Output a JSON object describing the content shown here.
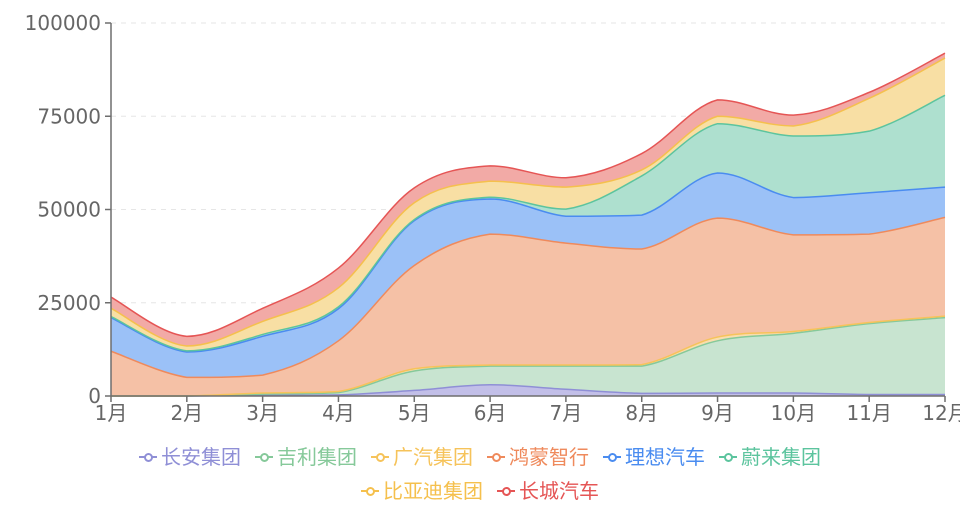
{
  "chart_data": {
    "type": "area",
    "stacked": true,
    "smooth": true,
    "title": "",
    "xlabel": "",
    "ylabel": "",
    "ylim": [
      0,
      100000
    ],
    "yticks": [
      0,
      25000,
      50000,
      75000,
      100000
    ],
    "grid": "horizontal dashed",
    "legend_position": "bottom",
    "categories": [
      "1月",
      "2月",
      "3月",
      "4月",
      "5月",
      "6月",
      "7月",
      "8月",
      "9月",
      "10月",
      "11月",
      "12月"
    ],
    "series": [
      {
        "name": "长安集团",
        "color": "#8f8fd6",
        "fill": "#c2bfe8",
        "values": [
          0,
          0,
          200,
          300,
          1500,
          3000,
          1800,
          700,
          800,
          800,
          400,
          400
        ]
      },
      {
        "name": "吉利集团",
        "color": "#86c99a",
        "fill": "#c8e4d0",
        "values": [
          0,
          0,
          300,
          600,
          5200,
          5000,
          6200,
          7300,
          14000,
          16000,
          19000,
          20600
        ]
      },
      {
        "name": "广汽集团",
        "color": "#f6c35a",
        "fill": "#f9ddae",
        "values": [
          0,
          0,
          300,
          300,
          600,
          300,
          300,
          400,
          1000,
          500,
          300,
          400
        ]
      },
      {
        "name": "鸿蒙智行",
        "color": "#ef8a5c",
        "fill": "#f5c1a6",
        "values": [
          12000,
          5000,
          4800,
          13600,
          27700,
          35100,
          32700,
          31000,
          31900,
          25900,
          23700,
          26500
        ]
      },
      {
        "name": "理想汽车",
        "color": "#4a8cf0",
        "fill": "#9bc1f7",
        "values": [
          9000,
          6800,
          10400,
          8600,
          12000,
          9400,
          7200,
          9100,
          12100,
          10000,
          11100,
          8100
        ]
      },
      {
        "name": "蔚来集团",
        "color": "#5cc49e",
        "fill": "#aee0cf",
        "values": [
          300,
          300,
          500,
          500,
          300,
          500,
          1900,
          10500,
          13200,
          16500,
          16500,
          24600
        ]
      },
      {
        "name": "比亚迪集团",
        "color": "#f5c04d",
        "fill": "#f8dfa4",
        "values": [
          2200,
          1300,
          3500,
          5100,
          4500,
          4300,
          5900,
          1600,
          2000,
          2700,
          8800,
          10000
        ]
      },
      {
        "name": "长城汽车",
        "color": "#e55555",
        "fill": "#f2aaa6",
        "values": [
          3000,
          2600,
          3500,
          5300,
          4000,
          4100,
          2500,
          4400,
          4400,
          2900,
          1600,
          1300
        ]
      }
    ]
  },
  "legend": {
    "row1": [
      "长安集团",
      "吉利集团",
      "广汽集团",
      "鸿蒙智行",
      "理想汽车",
      "蔚来集团"
    ],
    "row2": [
      "比亚迪集团",
      "长城汽车"
    ]
  },
  "axis": {
    "y_labels": [
      "0",
      "25000",
      "50000",
      "75000",
      "100000"
    ]
  }
}
